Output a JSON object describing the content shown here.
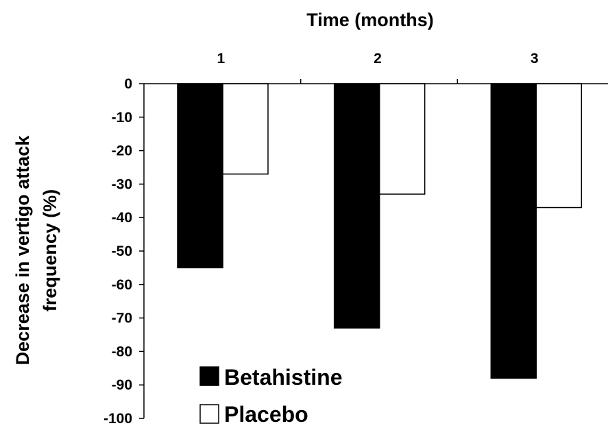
{
  "chart_data": {
    "type": "bar",
    "title": "Time (months)",
    "xlabel": "Time (months)",
    "ylabel_lines": [
      "Decrease in vertigo attack",
      "frequency (%)"
    ],
    "categories": [
      "1",
      "2",
      "3"
    ],
    "ylim": [
      -100,
      0
    ],
    "y_ticks": [
      0,
      -10,
      -20,
      -30,
      -40,
      -50,
      -60,
      -70,
      -80,
      -90,
      -100
    ],
    "y_tick_labels": [
      "0",
      "-10",
      "-20",
      "-30",
      "-40",
      "-50",
      "-60",
      "-70",
      "-80",
      "-90",
      "-100"
    ],
    "series": [
      {
        "name": "Betahistine",
        "color": "#000000",
        "values": [
          -55,
          -73,
          -88
        ]
      },
      {
        "name": "Placebo",
        "color": "#ffffff",
        "values": [
          -27,
          -33,
          -37
        ]
      }
    ],
    "x_axis_position": "top",
    "legend_position": "bottom-left",
    "grid": false
  }
}
